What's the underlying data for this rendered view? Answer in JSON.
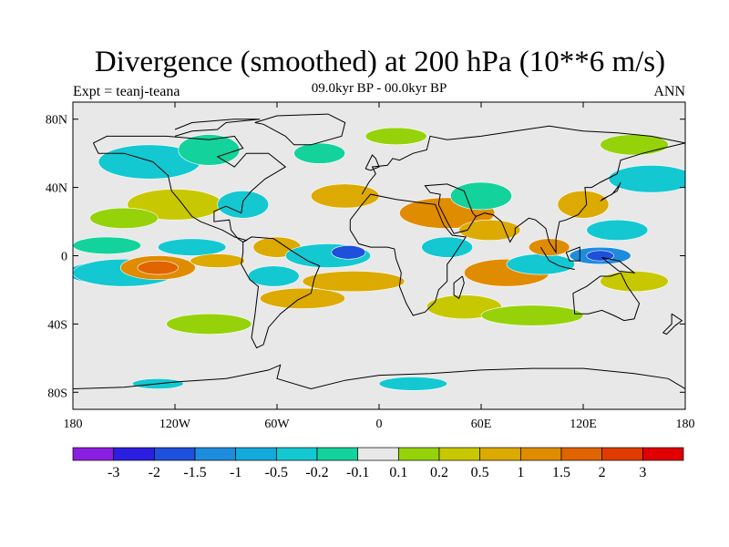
{
  "chart_data": {
    "type": "heatmap",
    "title": "Divergence (smoothed) at 200 hPa (10**6 m/s)",
    "subtitle": "09.0kyr BP - 00.0kyr BP",
    "left_label": "Expt = teanj-teana",
    "right_label": "ANN",
    "x_axis": {
      "range": [
        -180,
        180
      ],
      "ticks": [
        {
          "value": -180,
          "label": "180"
        },
        {
          "value": -120,
          "label": "120W"
        },
        {
          "value": -60,
          "label": "60W"
        },
        {
          "value": 0,
          "label": "0"
        },
        {
          "value": 60,
          "label": "60E"
        },
        {
          "value": 120,
          "label": "120E"
        },
        {
          "value": 180,
          "label": "180"
        }
      ]
    },
    "y_axis": {
      "range": [
        -90,
        90
      ],
      "ticks": [
        {
          "value": 80,
          "label": "80N"
        },
        {
          "value": 40,
          "label": "40N"
        },
        {
          "value": 0,
          "label": "0"
        },
        {
          "value": -40,
          "label": "40S"
        },
        {
          "value": -80,
          "label": "80S"
        }
      ]
    },
    "colorbar": {
      "colors": [
        "#8a1ee0",
        "#2b1ee0",
        "#1e50dc",
        "#1e8cdc",
        "#14aadc",
        "#14c8d2",
        "#14d29b",
        "#e8e8e8",
        "#96d20a",
        "#c8c800",
        "#dcaa00",
        "#e08c00",
        "#e06400",
        "#e03c00",
        "#e00000"
      ],
      "labels": [
        "-3",
        "-2",
        "-1.5",
        "-1",
        "-0.5",
        "-0.2",
        "-0.1",
        "0.1",
        "0.2",
        "0.5",
        "1",
        "1.5",
        "2",
        "3"
      ]
    },
    "blobs": [
      {
        "lon": -165,
        "lat": -10,
        "rx": 18,
        "ry": 6,
        "level": 4
      },
      {
        "lon": -150,
        "lat": -10,
        "rx": 30,
        "ry": 8,
        "level": 5
      },
      {
        "lon": -130,
        "lat": -7,
        "rx": 22,
        "ry": 7,
        "level": 11
      },
      {
        "lon": -130,
        "lat": -7,
        "rx": 12,
        "ry": 4,
        "level": 12
      },
      {
        "lon": -160,
        "lat": 6,
        "rx": 20,
        "ry": 5,
        "level": 6
      },
      {
        "lon": -110,
        "lat": 5,
        "rx": 20,
        "ry": 5,
        "level": 5
      },
      {
        "lon": -95,
        "lat": -3,
        "rx": 16,
        "ry": 4,
        "level": 10
      },
      {
        "lon": -120,
        "lat": 30,
        "rx": 28,
        "ry": 9,
        "level": 9
      },
      {
        "lon": -150,
        "lat": 22,
        "rx": 20,
        "ry": 6,
        "level": 8
      },
      {
        "lon": -135,
        "lat": 55,
        "rx": 30,
        "ry": 10,
        "level": 5
      },
      {
        "lon": -100,
        "lat": 62,
        "rx": 18,
        "ry": 9,
        "level": 6
      },
      {
        "lon": -80,
        "lat": 30,
        "rx": 15,
        "ry": 8,
        "level": 5
      },
      {
        "lon": -60,
        "lat": 5,
        "rx": 14,
        "ry": 6,
        "level": 10
      },
      {
        "lon": -62,
        "lat": -12,
        "rx": 15,
        "ry": 6,
        "level": 5
      },
      {
        "lon": -45,
        "lat": -25,
        "rx": 25,
        "ry": 6,
        "level": 10
      },
      {
        "lon": -30,
        "lat": 0,
        "rx": 25,
        "ry": 7,
        "level": 5
      },
      {
        "lon": -18,
        "lat": 2,
        "rx": 10,
        "ry": 4,
        "level": 2
      },
      {
        "lon": -15,
        "lat": -15,
        "rx": 30,
        "ry": 6,
        "level": 10
      },
      {
        "lon": -20,
        "lat": 35,
        "rx": 20,
        "ry": 7,
        "level": 10
      },
      {
        "lon": -35,
        "lat": 60,
        "rx": 15,
        "ry": 6,
        "level": 6
      },
      {
        "lon": 10,
        "lat": 70,
        "rx": 18,
        "ry": 5,
        "level": 8
      },
      {
        "lon": 40,
        "lat": 25,
        "rx": 28,
        "ry": 9,
        "level": 11
      },
      {
        "lon": 40,
        "lat": 5,
        "rx": 15,
        "ry": 6,
        "level": 5
      },
      {
        "lon": 60,
        "lat": 35,
        "rx": 18,
        "ry": 8,
        "level": 6
      },
      {
        "lon": 65,
        "lat": 15,
        "rx": 18,
        "ry": 6,
        "level": 10
      },
      {
        "lon": 75,
        "lat": -10,
        "rx": 25,
        "ry": 8,
        "level": 11
      },
      {
        "lon": 50,
        "lat": -30,
        "rx": 22,
        "ry": 7,
        "level": 9
      },
      {
        "lon": 95,
        "lat": -5,
        "rx": 20,
        "ry": 6,
        "level": 5
      },
      {
        "lon": 100,
        "lat": 5,
        "rx": 12,
        "ry": 5,
        "level": 11
      },
      {
        "lon": 120,
        "lat": 30,
        "rx": 15,
        "ry": 8,
        "level": 10
      },
      {
        "lon": 130,
        "lat": 0,
        "rx": 18,
        "ry": 5,
        "level": 3
      },
      {
        "lon": 130,
        "lat": 0,
        "rx": 8,
        "ry": 3,
        "level": 2
      },
      {
        "lon": 140,
        "lat": 15,
        "rx": 18,
        "ry": 6,
        "level": 5
      },
      {
        "lon": 160,
        "lat": 45,
        "rx": 25,
        "ry": 8,
        "level": 5
      },
      {
        "lon": 150,
        "lat": -15,
        "rx": 20,
        "ry": 6,
        "level": 9
      },
      {
        "lon": 150,
        "lat": 65,
        "rx": 20,
        "ry": 6,
        "level": 8
      },
      {
        "lon": 90,
        "lat": -35,
        "rx": 30,
        "ry": 6,
        "level": 8
      },
      {
        "lon": -100,
        "lat": -40,
        "rx": 25,
        "ry": 6,
        "level": 8
      },
      {
        "lon": 20,
        "lat": -75,
        "rx": 20,
        "ry": 4,
        "level": 5
      },
      {
        "lon": -130,
        "lat": -75,
        "rx": 15,
        "ry": 3,
        "level": 5
      }
    ]
  }
}
